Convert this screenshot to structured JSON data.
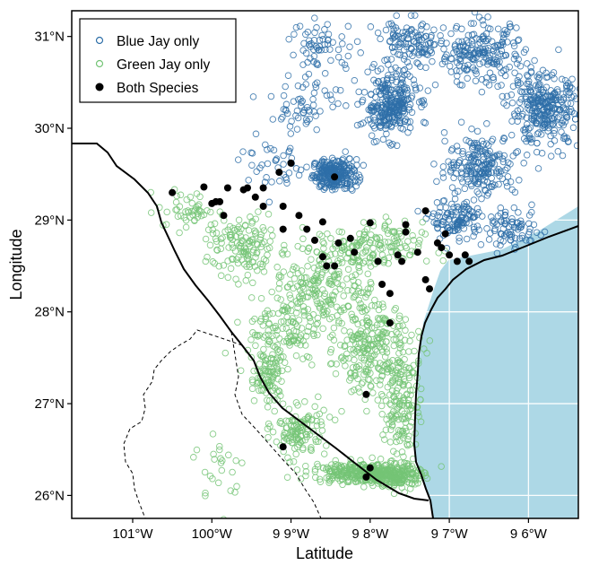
{
  "chart_data": {
    "type": "scatter",
    "xlabel": "Latitude",
    "ylabel": "Longitude",
    "x_ticks": [
      {
        "value": -101,
        "label": "101°W"
      },
      {
        "value": -100,
        "label": "100°W"
      },
      {
        "value": -99,
        "label": "9 9°W"
      },
      {
        "value": -98,
        "label": "9 8°W"
      },
      {
        "value": -97,
        "label": "9 7°W"
      },
      {
        "value": -96,
        "label": "9 6°W"
      }
    ],
    "y_ticks": [
      {
        "value": 26,
        "label": "26°N"
      },
      {
        "value": 27,
        "label": "27°N"
      },
      {
        "value": 28,
        "label": "28°N"
      },
      {
        "value": 29,
        "label": "29°N"
      },
      {
        "value": 30,
        "label": "30°N"
      },
      {
        "value": 31,
        "label": "31°N"
      }
    ],
    "xlim": [
      -101.77,
      -95.37
    ],
    "ylim": [
      25.75,
      31.28
    ],
    "legend_position": "top-left",
    "grid": true,
    "water_color": "#add8e6",
    "series": [
      {
        "name": "Blue Jay only",
        "marker": "open-circle",
        "color": "#2e6fa8",
        "clusters": [
          {
            "center": [
              -98.45,
              29.5
            ],
            "spread": [
              0.25,
              0.15
            ],
            "count": 260
          },
          {
            "center": [
              -97.75,
              30.25
            ],
            "spread": [
              0.3,
              0.3
            ],
            "count": 280
          },
          {
            "center": [
              -95.8,
              30.2
            ],
            "spread": [
              0.4,
              0.35
            ],
            "count": 300
          },
          {
            "center": [
              -96.6,
              29.6
            ],
            "spread": [
              0.4,
              0.3
            ],
            "count": 200
          },
          {
            "center": [
              -96.9,
              29.0
            ],
            "spread": [
              0.3,
              0.2
            ],
            "count": 120
          },
          {
            "center": [
              -96.6,
              30.8
            ],
            "spread": [
              0.5,
              0.3
            ],
            "count": 200
          },
          {
            "center": [
              -97.5,
              30.9
            ],
            "spread": [
              0.4,
              0.25
            ],
            "count": 120
          },
          {
            "center": [
              -98.6,
              30.9
            ],
            "spread": [
              0.4,
              0.25
            ],
            "count": 60
          },
          {
            "center": [
              -98.8,
              30.3
            ],
            "spread": [
              0.4,
              0.3
            ],
            "count": 60
          },
          {
            "center": [
              -96.2,
              28.9
            ],
            "spread": [
              0.3,
              0.2
            ],
            "count": 80
          },
          {
            "center": [
              -99.2,
              29.6
            ],
            "spread": [
              0.4,
              0.25
            ],
            "count": 40
          }
        ]
      },
      {
        "name": "Green Jay only",
        "marker": "open-circle",
        "color": "#74c476",
        "clusters": [
          {
            "center": [
              -98.1,
              26.25
            ],
            "spread": [
              0.55,
              0.1
            ],
            "count": 320
          },
          {
            "center": [
              -97.65,
              26.2
            ],
            "spread": [
              0.25,
              0.12
            ],
            "count": 150
          },
          {
            "center": [
              -98.9,
              26.7
            ],
            "spread": [
              0.3,
              0.25
            ],
            "count": 120
          },
          {
            "center": [
              -99.3,
              27.3
            ],
            "spread": [
              0.2,
              0.3
            ],
            "count": 100
          },
          {
            "center": [
              -98.0,
              27.6
            ],
            "spread": [
              0.5,
              0.45
            ],
            "count": 260
          },
          {
            "center": [
              -97.6,
              27.0
            ],
            "spread": [
              0.2,
              0.6
            ],
            "count": 150
          },
          {
            "center": [
              -98.6,
              28.3
            ],
            "spread": [
              0.6,
              0.4
            ],
            "count": 220
          },
          {
            "center": [
              -99.6,
              28.7
            ],
            "spread": [
              0.4,
              0.3
            ],
            "count": 130
          },
          {
            "center": [
              -98.0,
              28.7
            ],
            "spread": [
              0.6,
              0.25
            ],
            "count": 150
          },
          {
            "center": [
              -100.3,
              29.1
            ],
            "spread": [
              0.35,
              0.2
            ],
            "count": 50
          },
          {
            "center": [
              -99.1,
              27.8
            ],
            "spread": [
              0.4,
              0.3
            ],
            "count": 100
          },
          {
            "center": [
              -99.9,
              26.3
            ],
            "spread": [
              0.3,
              0.4
            ],
            "count": 25
          }
        ]
      },
      {
        "name": "Both Species",
        "marker": "filled-circle",
        "color": "#000000",
        "points": [
          [
            -98.45,
            29.47
          ],
          [
            -99.0,
            29.62
          ],
          [
            -99.15,
            29.52
          ],
          [
            -100.5,
            29.3
          ],
          [
            -100.1,
            29.36
          ],
          [
            -99.8,
            29.35
          ],
          [
            -99.95,
            29.2
          ],
          [
            -100.0,
            29.18
          ],
          [
            -99.9,
            29.2
          ],
          [
            -99.85,
            29.05
          ],
          [
            -99.6,
            29.33
          ],
          [
            -99.55,
            29.35
          ],
          [
            -99.45,
            29.25
          ],
          [
            -99.35,
            29.35
          ],
          [
            -99.1,
            29.15
          ],
          [
            -99.1,
            28.9
          ],
          [
            -98.9,
            29.05
          ],
          [
            -98.8,
            28.9
          ],
          [
            -98.7,
            28.78
          ],
          [
            -98.6,
            28.6
          ],
          [
            -98.55,
            28.5
          ],
          [
            -98.45,
            28.5
          ],
          [
            -98.4,
            28.75
          ],
          [
            -98.25,
            28.8
          ],
          [
            -98.0,
            28.97
          ],
          [
            -98.2,
            28.65
          ],
          [
            -97.9,
            28.55
          ],
          [
            -97.85,
            28.3
          ],
          [
            -97.75,
            28.2
          ],
          [
            -97.6,
            28.55
          ],
          [
            -97.55,
            28.87
          ],
          [
            -97.55,
            28.95
          ],
          [
            -97.4,
            28.65
          ],
          [
            -97.3,
            28.35
          ],
          [
            -97.25,
            28.25
          ],
          [
            -97.15,
            28.75
          ],
          [
            -97.1,
            28.7
          ],
          [
            -97.05,
            28.85
          ],
          [
            -97.0,
            28.62
          ],
          [
            -96.9,
            28.55
          ],
          [
            -96.8,
            28.62
          ],
          [
            -96.75,
            28.55
          ],
          [
            -97.65,
            28.62
          ],
          [
            -97.3,
            29.1
          ],
          [
            -97.75,
            27.88
          ],
          [
            -98.05,
            27.1
          ],
          [
            -99.1,
            26.53
          ],
          [
            -98.0,
            26.3
          ],
          [
            -98.05,
            26.2
          ],
          [
            -98.6,
            28.98
          ],
          [
            -99.35,
            29.15
          ]
        ]
      }
    ]
  }
}
